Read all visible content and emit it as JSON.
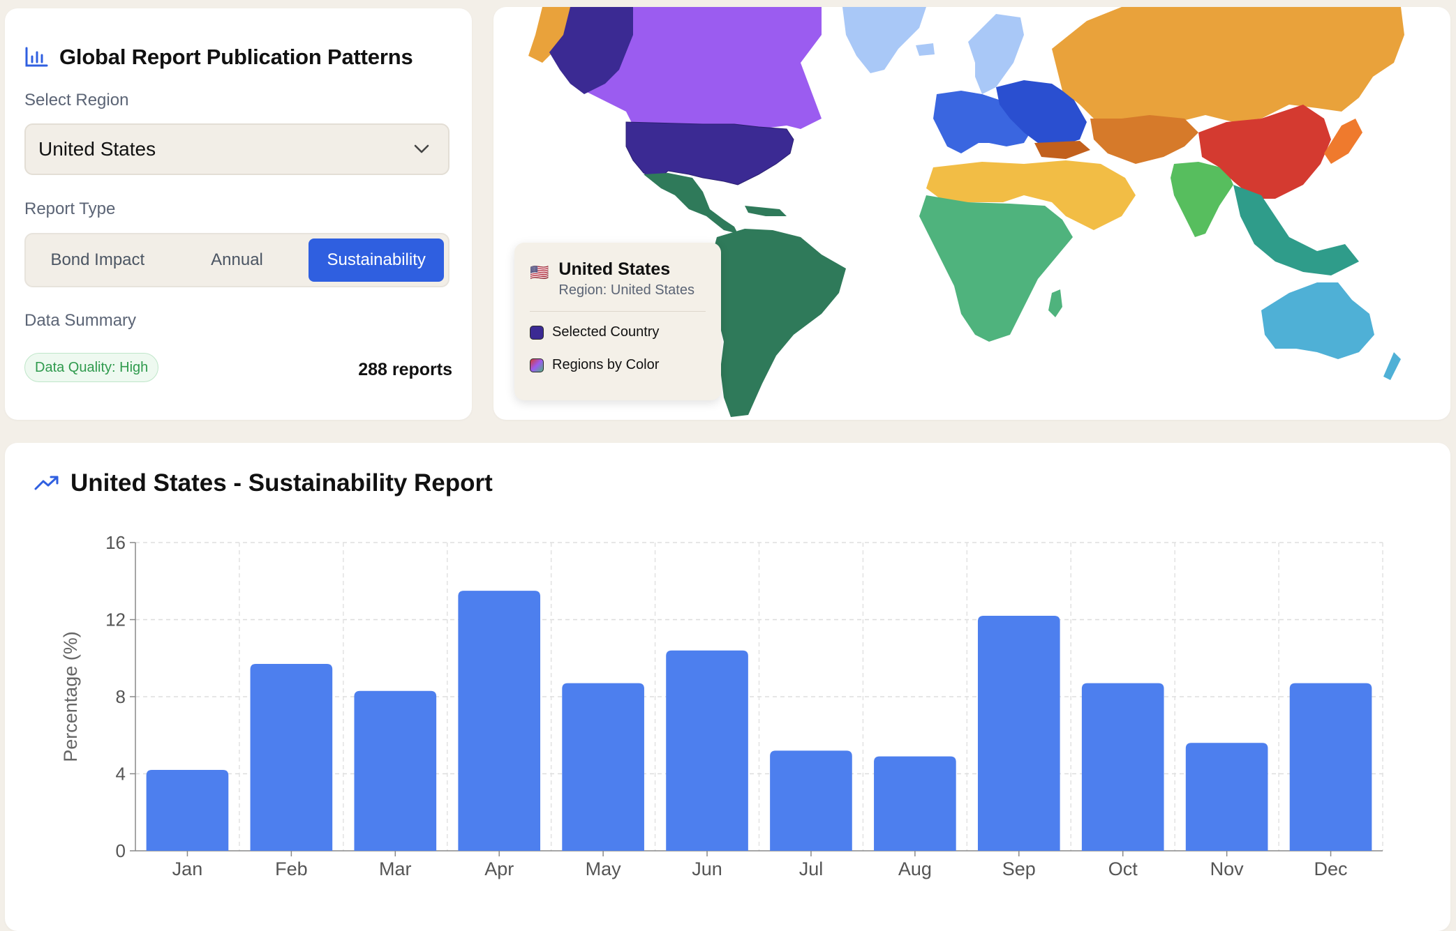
{
  "header": {
    "title": "Global Report Publication Patterns",
    "icon": "bar-chart-icon"
  },
  "region_select": {
    "label": "Select Region",
    "value": "United States"
  },
  "report_type": {
    "label": "Report Type",
    "options": [
      "Bond Impact",
      "Annual",
      "Sustainability"
    ],
    "selected": "Sustainability"
  },
  "summary": {
    "label": "Data Summary",
    "quality": "Data Quality: High",
    "count": "288 reports"
  },
  "map_legend": {
    "flag": "🇺🇸",
    "country": "United States",
    "region": "Region: United States",
    "selected_label": "Selected Country",
    "regions_label": "Regions by Color"
  },
  "colors": {
    "accent": "#2f5fe0",
    "bar": "#4d7fee",
    "selected_country": "#3b2a93",
    "north_america": "#9b5cf0",
    "latin_america": "#2f7a5a",
    "europe": "#3a66e0",
    "africa": "#4fb37d",
    "middle_east": "#f2bd45",
    "russia": "#e9a23b",
    "china": "#d43a30",
    "south_asia": "#57be5e",
    "oceania": "#4fb0d6"
  },
  "chart_data": {
    "type": "bar",
    "title": "United States - Sustainability Report",
    "categories": [
      "Jan",
      "Feb",
      "Mar",
      "Apr",
      "May",
      "Jun",
      "Jul",
      "Aug",
      "Sep",
      "Oct",
      "Nov",
      "Dec"
    ],
    "values": [
      4.2,
      9.7,
      8.3,
      13.5,
      8.7,
      10.4,
      5.2,
      4.9,
      12.2,
      8.7,
      5.6,
      8.7
    ],
    "ylabel": "Percentage (%)",
    "xlabel": "",
    "ylim": [
      0,
      16
    ],
    "yticks": [
      0,
      4,
      8,
      12,
      16
    ],
    "grid": true
  }
}
